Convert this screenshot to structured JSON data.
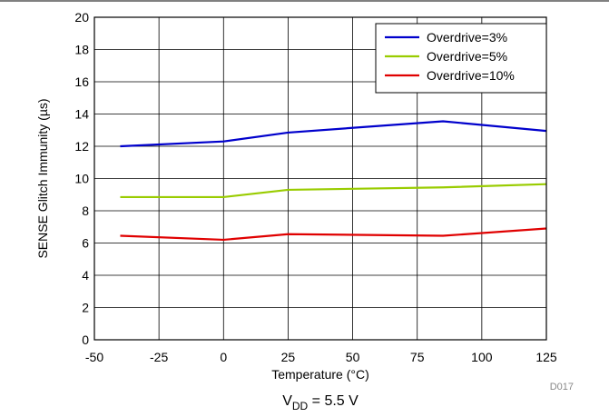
{
  "chart_data": {
    "type": "line",
    "xlabel": "Temperature (°C)",
    "ylabel": "SENSE Glitch Immunity (µs)",
    "xlim": [
      -50,
      125
    ],
    "ylim": [
      0,
      20
    ],
    "x_ticks": [
      -50,
      -25,
      0,
      25,
      50,
      75,
      100,
      125
    ],
    "y_ticks": [
      0,
      2,
      4,
      6,
      8,
      10,
      12,
      14,
      16,
      18,
      20
    ],
    "grid": true,
    "legend_position": "top-right",
    "series": [
      {
        "name": "Overdrive=3%",
        "color": "#0000cc",
        "x": [
          -40,
          0,
          25,
          85,
          125
        ],
        "y": [
          12.0,
          12.3,
          12.85,
          13.55,
          12.95
        ]
      },
      {
        "name": "Overdrive=5%",
        "color": "#99cc00",
        "x": [
          -40,
          0,
          25,
          85,
          125
        ],
        "y": [
          8.85,
          8.85,
          9.3,
          9.45,
          9.65
        ]
      },
      {
        "name": "Overdrive=10%",
        "color": "#e00000",
        "x": [
          -40,
          0,
          25,
          85,
          125
        ],
        "y": [
          6.45,
          6.2,
          6.55,
          6.45,
          6.9
        ]
      }
    ],
    "figure_id": "D017",
    "caption_main": "V",
    "caption_sub": "DD",
    "caption_rest": " = 5.5 V"
  }
}
